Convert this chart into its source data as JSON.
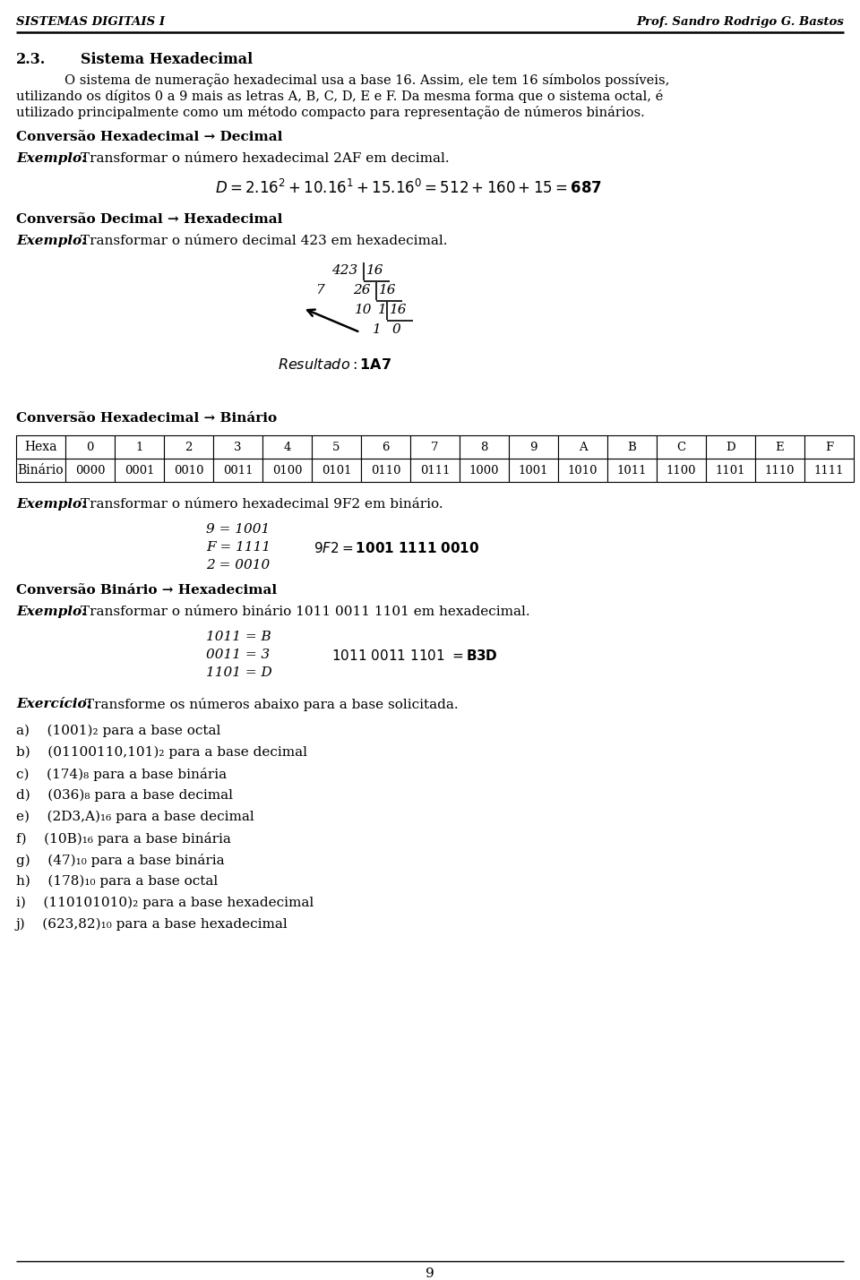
{
  "header_left": "SISTEMAS DIGITAIS I",
  "header_right": "Prof. Sandro Rodrigo G. Bastos",
  "hexa_row": [
    "Hexa",
    "0",
    "1",
    "2",
    "3",
    "4",
    "5",
    "6",
    "7",
    "8",
    "9",
    "A",
    "B",
    "C",
    "D",
    "E",
    "F"
  ],
  "bin_row": [
    "Binário",
    "0000",
    "0001",
    "0010",
    "0011",
    "0100",
    "0101",
    "0110",
    "0111",
    "1000",
    "1001",
    "1010",
    "1011",
    "1100",
    "1101",
    "1110",
    "1111"
  ],
  "items": [
    "a)    (1001)₂ para a base octal",
    "b)    (01100110,101)₂ para a base decimal",
    "c)    (174)₈ para a base binária",
    "d)    (036)₈ para a base decimal",
    "e)    (2D3,A)₁₆ para a base decimal",
    "f)    (10B)₁₆ para a base binária",
    "g)    (47)₁₀ para a base binária",
    "h)    (178)₁₀ para a base octal",
    "i)    (110101010)₂ para a base hexadecimal",
    "j)    (623,82)₁₀ para a base hexadecimal"
  ],
  "page_number": "9",
  "bg_color": "#ffffff"
}
